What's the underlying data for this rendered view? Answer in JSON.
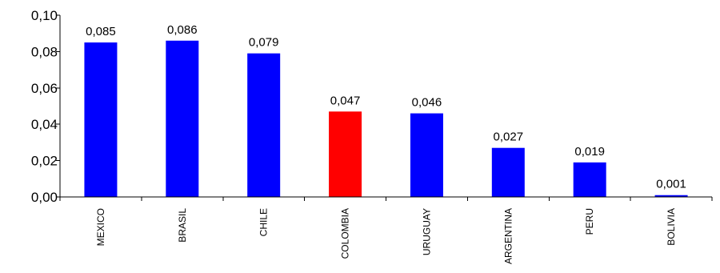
{
  "chart_data": {
    "type": "bar",
    "categories": [
      "MEXICO",
      "BRASIL",
      "CHILE",
      "COLOMBIA",
      "URUGUAY",
      "ARGENTINA",
      "PERU",
      "BOLIVIA"
    ],
    "values": [
      0.085,
      0.086,
      0.079,
      0.047,
      0.046,
      0.027,
      0.019,
      0.001
    ],
    "data_labels": [
      "0,085",
      "0,086",
      "0,079",
      "0,047",
      "0,046",
      "0,027",
      "0,019",
      "0,001"
    ],
    "bar_colors": [
      "#0000FF",
      "#0000FF",
      "#0000FF",
      "#FF0000",
      "#0000FF",
      "#0000FF",
      "#0000FF",
      "#0000FF"
    ],
    "y_ticks": [
      0,
      0.02,
      0.04,
      0.06,
      0.08,
      0.1
    ],
    "y_tick_labels": [
      "0,00",
      "0,02",
      "0,04",
      "0,06",
      "0,08",
      "0,10"
    ],
    "ylim": [
      0,
      0.1
    ],
    "title": "",
    "xlabel": "",
    "ylabel": "",
    "grid": false,
    "legend": "none"
  }
}
